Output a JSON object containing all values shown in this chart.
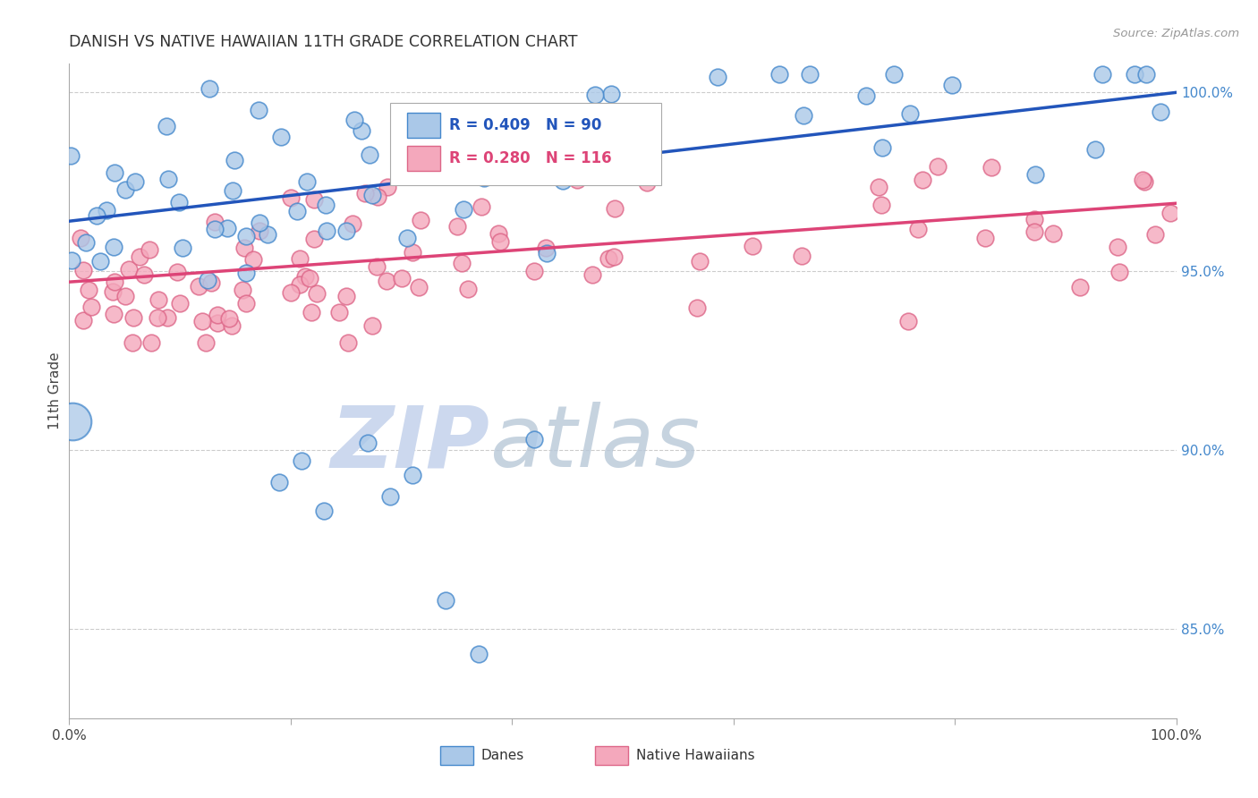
{
  "title": "DANISH VS NATIVE HAWAIIAN 11TH GRADE CORRELATION CHART",
  "source": "Source: ZipAtlas.com",
  "ylabel": "11th Grade",
  "legend_blue_label": "Danes",
  "legend_pink_label": "Native Hawaiians",
  "R_blue": 0.409,
  "N_blue": 90,
  "R_pink": 0.28,
  "N_pink": 116,
  "blue_color": "#aac8e8",
  "pink_color": "#f4a8bc",
  "blue_line_color": "#2255bb",
  "pink_line_color": "#dd4477",
  "blue_edge": "#4488cc",
  "pink_edge": "#dd6688",
  "xlim": [
    0.0,
    1.0
  ],
  "ylim": [
    0.825,
    1.008
  ],
  "ytick_values": [
    0.85,
    0.9,
    0.95,
    1.0
  ],
  "ytick_labels": [
    "85.0%",
    "90.0%",
    "95.0%",
    "100.0%"
  ],
  "grid_color": "#cccccc",
  "watermark_zip_color": "#ccd8ee",
  "watermark_atlas_color": "#b8c8d8",
  "bg_color": "#ffffff",
  "blue_line_intercept": 0.964,
  "blue_line_slope": 0.036,
  "pink_line_intercept": 0.947,
  "pink_line_slope": 0.022,
  "seed": 99
}
